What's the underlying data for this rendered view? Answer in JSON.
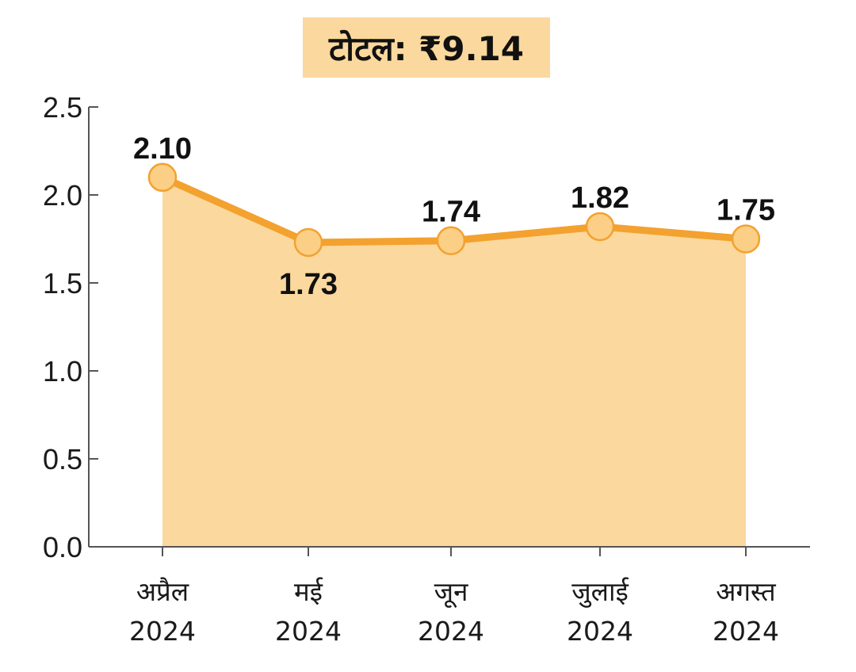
{
  "title": "टोटल: ₹9.14",
  "colors": {
    "accent": "#f3a12f",
    "fill": "#fbd89d",
    "marker": "#fbcf86",
    "axis": "#555555",
    "title_bg": "#fbd89d"
  },
  "chart_data": {
    "type": "area",
    "title": "टोटल: ₹9.14",
    "categories": [
      "अप्रैल 2024",
      "मई 2024",
      "जून 2024",
      "जुलाई 2024",
      "अगस्त 2024"
    ],
    "category_lines": [
      [
        "अप्रैल",
        "2024"
      ],
      [
        "मई",
        "2024"
      ],
      [
        "जून",
        "2024"
      ],
      [
        "जुलाई",
        "2024"
      ],
      [
        "अगस्त",
        "2024"
      ]
    ],
    "values": [
      2.1,
      1.73,
      1.74,
      1.82,
      1.75
    ],
    "value_labels": [
      "2.10",
      "1.73",
      "1.74",
      "1.82",
      "1.75"
    ],
    "label_position": [
      "above",
      "below",
      "above",
      "above",
      "above"
    ],
    "ylim": [
      0,
      2.5
    ],
    "yticks": [
      "0.0",
      "0.5",
      "1.0",
      "1.5",
      "2.0",
      "2.5"
    ],
    "ytick_values": [
      0,
      0.5,
      1.0,
      1.5,
      2.0,
      2.5
    ],
    "grid": false,
    "xlabel": "",
    "ylabel": ""
  }
}
